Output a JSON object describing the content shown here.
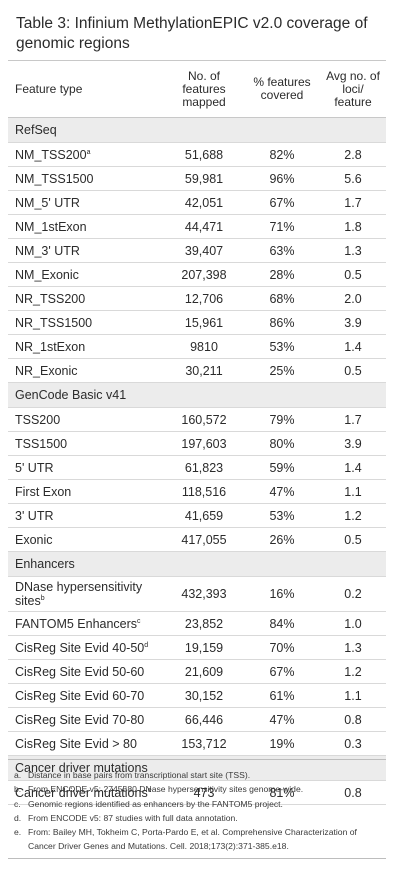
{
  "title": "Table 3: Infinium MethylationEPIC v2.0 coverage of genomic regions",
  "headers": {
    "feature_type": "Feature type",
    "features_mapped": "No. of features mapped",
    "percent_covered": "% features covered",
    "avg_loci": "Avg no. of loci/ feature"
  },
  "sections": [
    {
      "name": "RefSeq",
      "rows": [
        {
          "feature": "NM_TSS200",
          "sup": "a",
          "mapped": "51,688",
          "covered": "82%",
          "avg": "2.8"
        },
        {
          "feature": "NM_TSS1500",
          "sup": "",
          "mapped": "59,981",
          "covered": "96%",
          "avg": "5.6"
        },
        {
          "feature": "NM_5' UTR",
          "sup": "",
          "mapped": "42,051",
          "covered": "67%",
          "avg": "1.7"
        },
        {
          "feature": "NM_1stExon",
          "sup": "",
          "mapped": "44,471",
          "covered": "71%",
          "avg": "1.8"
        },
        {
          "feature": "NM_3' UTR",
          "sup": "",
          "mapped": "39,407",
          "covered": "63%",
          "avg": "1.3"
        },
        {
          "feature": "NM_Exonic",
          "sup": "",
          "mapped": "207,398",
          "covered": "28%",
          "avg": "0.5"
        },
        {
          "feature": "NR_TSS200",
          "sup": "",
          "mapped": "12,706",
          "covered": "68%",
          "avg": "2.0"
        },
        {
          "feature": "NR_TSS1500",
          "sup": "",
          "mapped": "15,961",
          "covered": "86%",
          "avg": "3.9"
        },
        {
          "feature": "NR_1stExon",
          "sup": "",
          "mapped": "9810",
          "covered": "53%",
          "avg": "1.4"
        },
        {
          "feature": "NR_Exonic",
          "sup": "",
          "mapped": "30,211",
          "covered": "25%",
          "avg": "0.5"
        }
      ]
    },
    {
      "name": "GenCode Basic v41",
      "rows": [
        {
          "feature": "TSS200",
          "sup": "",
          "mapped": "160,572",
          "covered": "79%",
          "avg": "1.7"
        },
        {
          "feature": "TSS1500",
          "sup": "",
          "mapped": "197,603",
          "covered": "80%",
          "avg": "3.9"
        },
        {
          "feature": "5' UTR",
          "sup": "",
          "mapped": "61,823",
          "covered": "59%",
          "avg": "1.4"
        },
        {
          "feature": "First Exon",
          "sup": "",
          "mapped": "118,516",
          "covered": "47%",
          "avg": "1.1"
        },
        {
          "feature": "3' UTR",
          "sup": "",
          "mapped": "41,659",
          "covered": "53%",
          "avg": "1.2"
        },
        {
          "feature": "Exonic",
          "sup": "",
          "mapped": "417,055",
          "covered": "26%",
          "avg": "0.5"
        }
      ]
    },
    {
      "name": "Enhancers",
      "rows": [
        {
          "feature": "DNase hypersensitivity sites",
          "sup": "b",
          "mapped": "432,393",
          "covered": "16%",
          "avg": "0.2",
          "tall": true
        },
        {
          "feature": "FANTOM5 Enhancers",
          "sup": "c",
          "mapped": "23,852",
          "covered": "84%",
          "avg": "1.0"
        },
        {
          "feature": "CisReg Site Evid 40-50",
          "sup": "d",
          "mapped": "19,159",
          "covered": "70%",
          "avg": "1.3"
        },
        {
          "feature": "CisReg Site Evid 50-60",
          "sup": "",
          "mapped": "21,609",
          "covered": "67%",
          "avg": "1.2"
        },
        {
          "feature": "CisReg Site Evid 60-70",
          "sup": "",
          "mapped": "30,152",
          "covered": "61%",
          "avg": "1.1"
        },
        {
          "feature": "CisReg Site Evid 70-80",
          "sup": "",
          "mapped": "66,446",
          "covered": "47%",
          "avg": "0.8"
        },
        {
          "feature": "CisReg Site Evid > 80",
          "sup": "",
          "mapped": "153,712",
          "covered": "19%",
          "avg": "0.3"
        }
      ]
    },
    {
      "name": "Cancer driver mutations",
      "rows": [
        {
          "feature": "Cancer driver mutations",
          "sup": "e",
          "mapped": "473",
          "covered": "81%",
          "avg": "0.8"
        }
      ]
    }
  ],
  "footnotes": [
    {
      "mark": "a.",
      "text": "Distance in base pairs from transcriptional start site (TSS)."
    },
    {
      "mark": "b.",
      "text": "From ENCODE v5: 2745580 DNase hypersensitivity sites genome-wide."
    },
    {
      "mark": "c.",
      "text": "Genomic regions identified as enhancers by the FANTOM5 project."
    },
    {
      "mark": "d.",
      "text": "From ENCODE v5: 87 studies with full data annotation."
    },
    {
      "mark": "e.",
      "text": "From: Bailey MH, Tokheim C, Porta-Pardo E, et al. Comprehensive Characterization of Cancer Driver Genes and Mutations. Cell. 2018;173(2):371-385.e18."
    }
  ]
}
